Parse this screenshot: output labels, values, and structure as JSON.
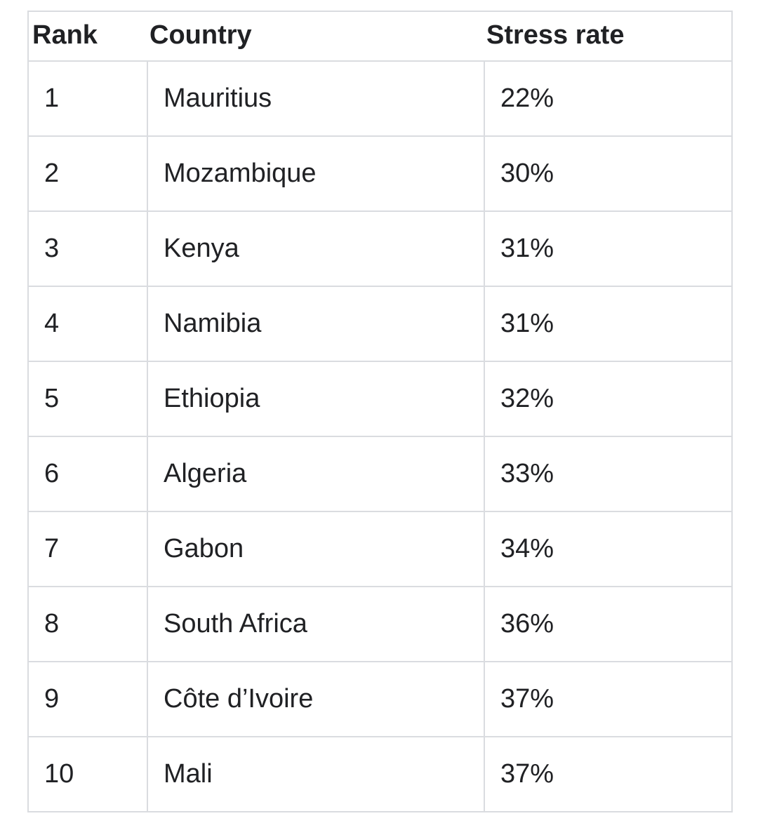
{
  "table": {
    "headers": [
      "Rank",
      "Country",
      "Stress rate"
    ],
    "rows": [
      {
        "rank": "1",
        "country": "Mauritius",
        "rate": "22%"
      },
      {
        "rank": "2",
        "country": "Mozambique",
        "rate": "30%"
      },
      {
        "rank": "3",
        "country": "Kenya",
        "rate": "31%"
      },
      {
        "rank": "4",
        "country": "Namibia",
        "rate": "31%"
      },
      {
        "rank": "5",
        "country": "Ethiopia",
        "rate": "32%"
      },
      {
        "rank": "6",
        "country": "Algeria",
        "rate": "33%"
      },
      {
        "rank": "7",
        "country": "Gabon",
        "rate": "34%"
      },
      {
        "rank": "8",
        "country": "South Africa",
        "rate": "36%"
      },
      {
        "rank": "9",
        "country": "Côte d’Ivoire",
        "rate": "37%"
      },
      {
        "rank": "10",
        "country": "Mali",
        "rate": "37%"
      }
    ]
  },
  "colors": {
    "text": "#202124",
    "border": "#dadce0",
    "background": "#ffffff"
  }
}
